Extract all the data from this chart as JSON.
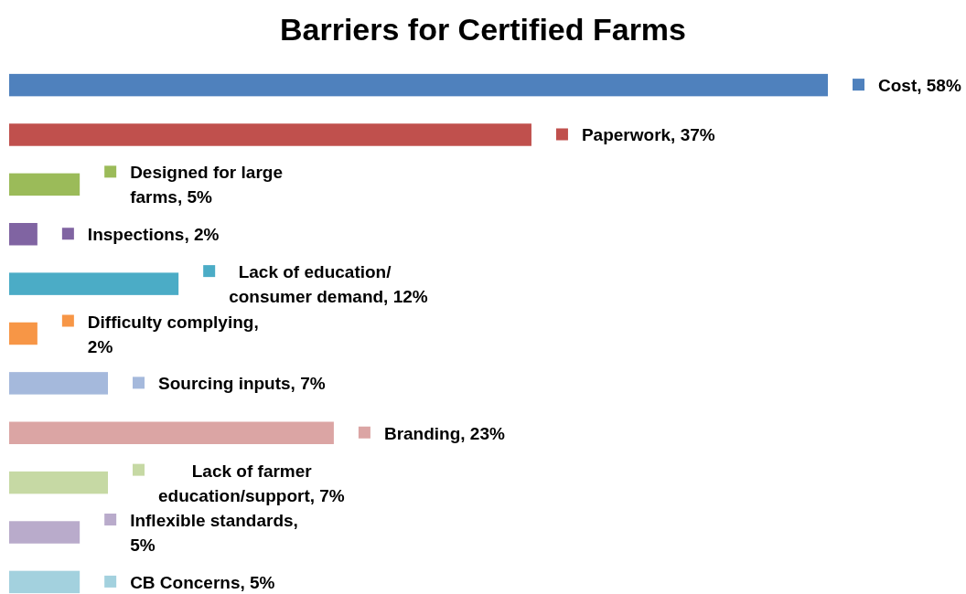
{
  "chart_data": {
    "type": "bar",
    "orientation": "horizontal",
    "title": "Barriers for Certified Farms",
    "categories": [
      null,
      null,
      null,
      null,
      null,
      null,
      null,
      null,
      null,
      null,
      null
    ],
    "values": [
      58,
      37,
      5,
      2,
      12,
      2,
      7,
      23,
      7,
      5,
      5
    ],
    "value_labels": [
      "Cost, 58%",
      "Paperwork, 37%",
      "Designed for large farms, 5%",
      "Inspections, 2%",
      "Lack of education/ consumer demand, 12%",
      "Difficulty complying, 2%",
      "Sourcing inputs, 7%",
      "Branding, 23%",
      "Lack of farmer education/support, 7%",
      "Inflexible standards, 5%",
      "CB Concerns, 5%"
    ],
    "colors": [
      "#4f81bd",
      "#c0504d",
      "#9bbb59",
      "#8064a2",
      "#4bacc6",
      "#f79646",
      "#a5b9dc",
      "#dba5a4",
      "#c6d9a4",
      "#b9abcb",
      "#a3d1de"
    ]
  }
}
